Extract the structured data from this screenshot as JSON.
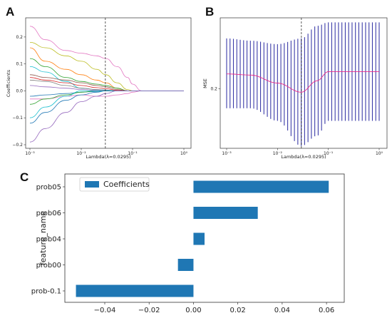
{
  "panels": {
    "a": "A",
    "b": "B",
    "c": "C"
  },
  "chart_data": [
    {
      "panel": "A",
      "type": "line",
      "xscale": "log",
      "xlabel": "Lambda(λ=0.0295)",
      "ylabel": "Coefficients",
      "xlim": [
        0.001,
        1
      ],
      "ylim": [
        -0.2,
        0.25
      ],
      "xticks": [
        "10⁻³",
        "10⁻²",
        "10⁻¹",
        "10⁰"
      ],
      "yticks": [
        "−0.2",
        "−0.1",
        "0.0",
        "0.1",
        "0.2"
      ],
      "vline": 0.0295,
      "x": [
        0.001,
        0.002,
        0.005,
        0.01,
        0.02,
        0.03,
        0.05,
        0.08,
        0.1,
        0.15,
        1
      ],
      "series": [
        {
          "color": "#e377c2",
          "values": [
            0.24,
            0.19,
            0.15,
            0.14,
            0.13,
            0.12,
            0.09,
            0.05,
            0.025,
            0,
            0
          ]
        },
        {
          "color": "#bcbd22",
          "values": [
            0.18,
            0.16,
            0.13,
            0.11,
            0.08,
            0.06,
            0.03,
            0.005,
            0,
            0,
            0
          ]
        },
        {
          "color": "#ff7f0e",
          "values": [
            0.16,
            0.11,
            0.08,
            0.06,
            0.04,
            0.03,
            0.01,
            0,
            0,
            0,
            0
          ]
        },
        {
          "color": "#2ca02c",
          "values": [
            0.12,
            0.09,
            0.05,
            0.035,
            0.025,
            0.02,
            0.01,
            0,
            0,
            0,
            0
          ]
        },
        {
          "color": "#17becf",
          "values": [
            0.09,
            0.07,
            0.035,
            0.01,
            0.005,
            0.003,
            0,
            0,
            0,
            0,
            0
          ]
        },
        {
          "color": "#8c564b",
          "values": [
            0.06,
            0.05,
            0.04,
            0.03,
            0.02,
            0.015,
            0.005,
            0,
            0,
            0,
            0
          ]
        },
        {
          "color": "#d62728",
          "values": [
            0.05,
            0.04,
            0.03,
            0.02,
            0.012,
            0.008,
            0.002,
            0,
            0,
            0,
            0
          ]
        },
        {
          "color": "#7f7f7f",
          "values": [
            0.04,
            0.035,
            0.02,
            0.01,
            0.005,
            0.002,
            0,
            0,
            0,
            0,
            0
          ]
        },
        {
          "color": "#9467bd",
          "values": [
            0.02,
            0.015,
            0.01,
            0.005,
            0.002,
            0,
            0,
            0,
            0,
            0,
            0
          ]
        },
        {
          "color": "#1f77b4",
          "values": [
            -0.02,
            -0.015,
            -0.01,
            -0.005,
            -0.002,
            0,
            0,
            0,
            0,
            0,
            0
          ]
        },
        {
          "color": "#e377c2",
          "values": [
            -0.03,
            -0.03,
            -0.02,
            -0.015,
            -0.02,
            -0.02,
            -0.015,
            -0.01,
            -0.005,
            0,
            0
          ]
        },
        {
          "color": "#2ca02c",
          "values": [
            -0.05,
            -0.03,
            -0.015,
            -0.005,
            0,
            0,
            0,
            0,
            0,
            0,
            0
          ]
        },
        {
          "color": "#17becf",
          "values": [
            -0.1,
            -0.06,
            -0.02,
            0,
            0,
            0,
            0,
            0,
            0,
            0,
            0
          ]
        },
        {
          "color": "#1f77b4",
          "values": [
            -0.12,
            -0.08,
            -0.035,
            -0.015,
            -0.005,
            0,
            0,
            0,
            0,
            0,
            0
          ]
        },
        {
          "color": "#9467bd",
          "values": [
            -0.19,
            -0.14,
            -0.08,
            -0.04,
            -0.02,
            -0.01,
            0,
            0,
            0,
            0,
            0
          ]
        }
      ]
    },
    {
      "panel": "B",
      "type": "line",
      "xscale": "log",
      "xlabel": "Lambda(λ=0.0295)",
      "ylabel": "MSE",
      "xlim": [
        0.001,
        1
      ],
      "ylim": [
        0.148,
        0.262
      ],
      "xticks": [
        "10⁻³",
        "10⁻²",
        "10⁻¹",
        "10⁰"
      ],
      "yticks": [
        "0.2"
      ],
      "vline": 0.0295,
      "mean_color": "#e8288a",
      "errorbar_color": "#3b3ba8",
      "x": [
        0.001,
        0.003,
        0.01,
        0.0295,
        0.06,
        0.1,
        0.2,
        1
      ],
      "mean": [
        0.213,
        0.212,
        0.205,
        0.197,
        0.207,
        0.215,
        0.215,
        0.215
      ],
      "upper": [
        0.244,
        0.242,
        0.239,
        0.244,
        0.255,
        0.258,
        0.258,
        0.258
      ],
      "lower": [
        0.183,
        0.183,
        0.172,
        0.15,
        0.159,
        0.172,
        0.172,
        0.172
      ]
    },
    {
      "panel": "C",
      "type": "bar",
      "orientation": "horizontal",
      "ylabel": "feature_name",
      "xlim": [
        -0.058,
        0.068
      ],
      "xticks": [
        -0.04,
        -0.02,
        0.0,
        0.02,
        0.04,
        0.06
      ],
      "xtick_labels": [
        "−0.04",
        "−0.02",
        "0.00",
        "0.02",
        "0.04",
        "0.06"
      ],
      "legend": "Coefficients",
      "bar_color": "#1f77b4",
      "categories": [
        "prob05",
        "prob06",
        "prob04",
        "prob00",
        "prob-0.1"
      ],
      "values": [
        0.061,
        0.029,
        0.005,
        -0.007,
        -0.053
      ]
    }
  ]
}
